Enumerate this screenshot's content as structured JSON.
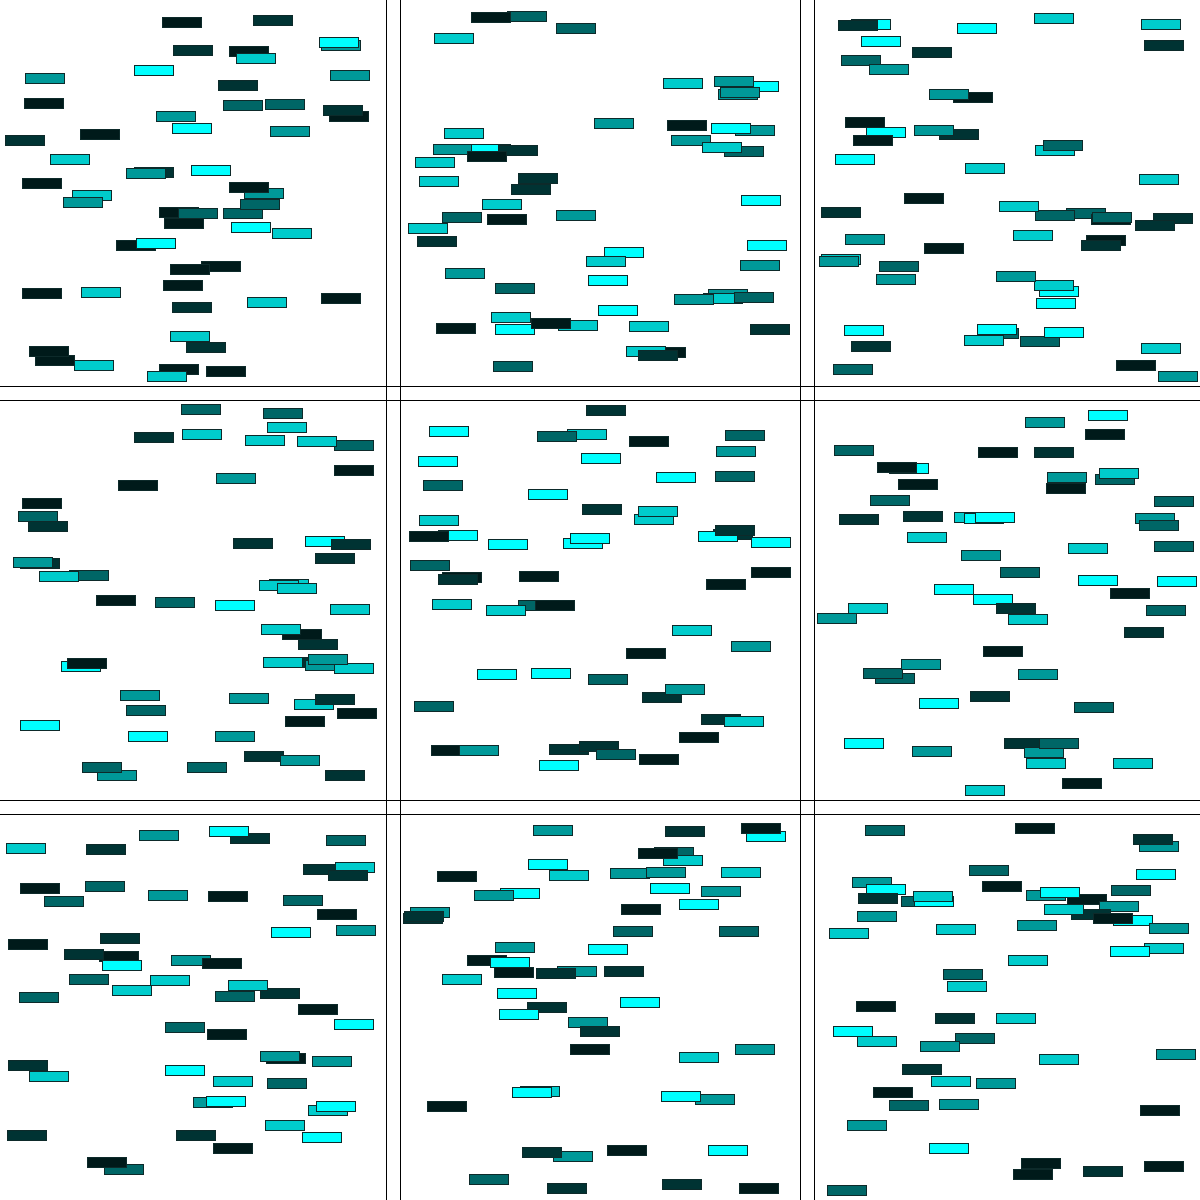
{
  "palette": [
    "#00ffff",
    "#00cccc",
    "#009999",
    "#006666",
    "#003333",
    "#001a1a"
  ]
}
